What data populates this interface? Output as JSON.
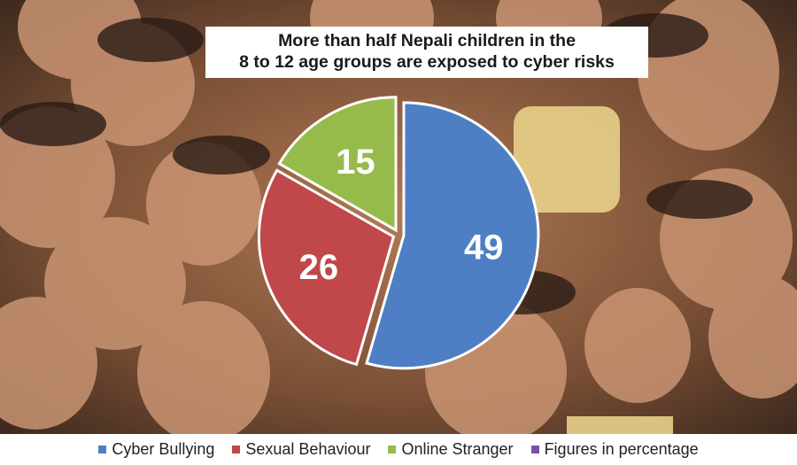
{
  "chart_data": {
    "type": "pie",
    "title": "More than half Nepali children in the 8 to 12 age groups are exposed to cyber risks",
    "title_lines": [
      "More than half Nepali children in the",
      "8 to 12 age groups are exposed to cyber risks"
    ],
    "categories": [
      "Cyber Bullying",
      "Sexual Behaviour",
      "Online Stranger"
    ],
    "values": [
      49,
      26,
      15
    ],
    "colors": [
      "#4e7fc4",
      "#c0474a",
      "#97bb4a"
    ],
    "value_labels": [
      "49",
      "26",
      "15"
    ],
    "legend": {
      "placement": "bottom",
      "items": [
        {
          "label": "Cyber Bullying",
          "color": "#4e7fc4"
        },
        {
          "label": "Sexual Behaviour",
          "color": "#c0474a"
        },
        {
          "label": "Online Stranger",
          "color": "#97bb4a"
        },
        {
          "label": "Figures in percentage",
          "color": "#7a4fa8"
        }
      ]
    }
  },
  "background": {
    "description_color": "#6b4a36"
  }
}
